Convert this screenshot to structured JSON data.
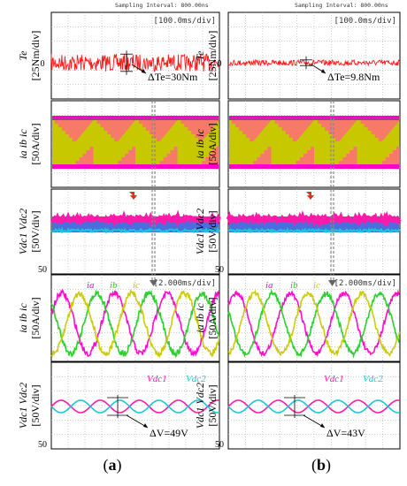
{
  "header": {
    "a": "Sampling Interval:  800.00ns",
    "b": "Sampling Interval:  800.00ns"
  },
  "columns": [
    {
      "caption_open": "(",
      "caption_letter": "a",
      "caption_close": ")",
      "time_div_top": "[100.0ms/div]",
      "time_div_bottom": "[2.000ms/div]",
      "torque_annotation": "ΔTe=30Nm",
      "torque_ripple_nm": 30,
      "dc_annotation": "ΔV=49V",
      "dc_ripple_v": 49
    },
    {
      "caption_open": "(",
      "caption_letter": "b",
      "caption_close": ")",
      "time_div_top": "[100.0ms/div]",
      "time_div_bottom": "[2.000ms/div]",
      "torque_annotation": "ΔTe=9.8Nm",
      "torque_ripple_nm": 9.8,
      "dc_annotation": "ΔV=43V",
      "dc_ripple_v": 43
    }
  ],
  "ylabels": {
    "torque_var": "Te",
    "torque_unit": "[25Nm/div]",
    "current_var": "ia ib ic",
    "current_unit": "[50A/div]",
    "dc_var": "Vdc1 Vdc2",
    "dc_unit": "[50V/div]",
    "current2_var": "ia ib ic",
    "current2_unit": "[50A/div]",
    "dc2_var": "Vdc1 Vdc2",
    "dc2_unit": "[50V/div]"
  },
  "ticks": {
    "zero_torque": "0",
    "fifty_dc": "50",
    "fifty_dc2": "50"
  },
  "legend_labels": {
    "ia": "ia",
    "ib": "ib",
    "ic": "ic",
    "vdc1": "Vdc1",
    "vdc2": "Vdc2"
  },
  "colors": {
    "torque": "#ff1a1a",
    "ia": "#ff00cc",
    "ib": "#22cc22",
    "ic": "#c8c800",
    "vdc1": "#ff1aa8",
    "vdc2": "#19c8d8",
    "grid": "#b0b0b0",
    "current_band": "#c8c800",
    "current_overlay": "#ff6b7a",
    "dc_blue": "#4a6ee0",
    "cursor": "#888888"
  },
  "chart_data": [
    {
      "type": "line",
      "title": "",
      "panel": "torque-a",
      "ylabel": "Te [25Nm/div]",
      "series": [
        {
          "values": [
            0
          ]
        }
      ],
      "ripple_pp": 30
    },
    {
      "type": "line",
      "title": "",
      "panel": "torque-b",
      "ylabel": "Te [25Nm/div]",
      "series": [
        {
          "values": [
            0
          ]
        }
      ],
      "ripple_pp": 9.8
    },
    {
      "type": "line",
      "title": "",
      "panel": "dc-zoom-a",
      "ylabel": "Vdc1 Vdc2 [50V/div]",
      "series": [
        {
          "name": "Vdc1"
        },
        {
          "name": "Vdc2"
        }
      ],
      "ripple_pp": 49
    },
    {
      "type": "line",
      "title": "",
      "panel": "dc-zoom-b",
      "ylabel": "Vdc1 Vdc2 [50V/div]",
      "series": [
        {
          "name": "Vdc1"
        },
        {
          "name": "Vdc2"
        }
      ],
      "ripple_pp": 43
    }
  ]
}
